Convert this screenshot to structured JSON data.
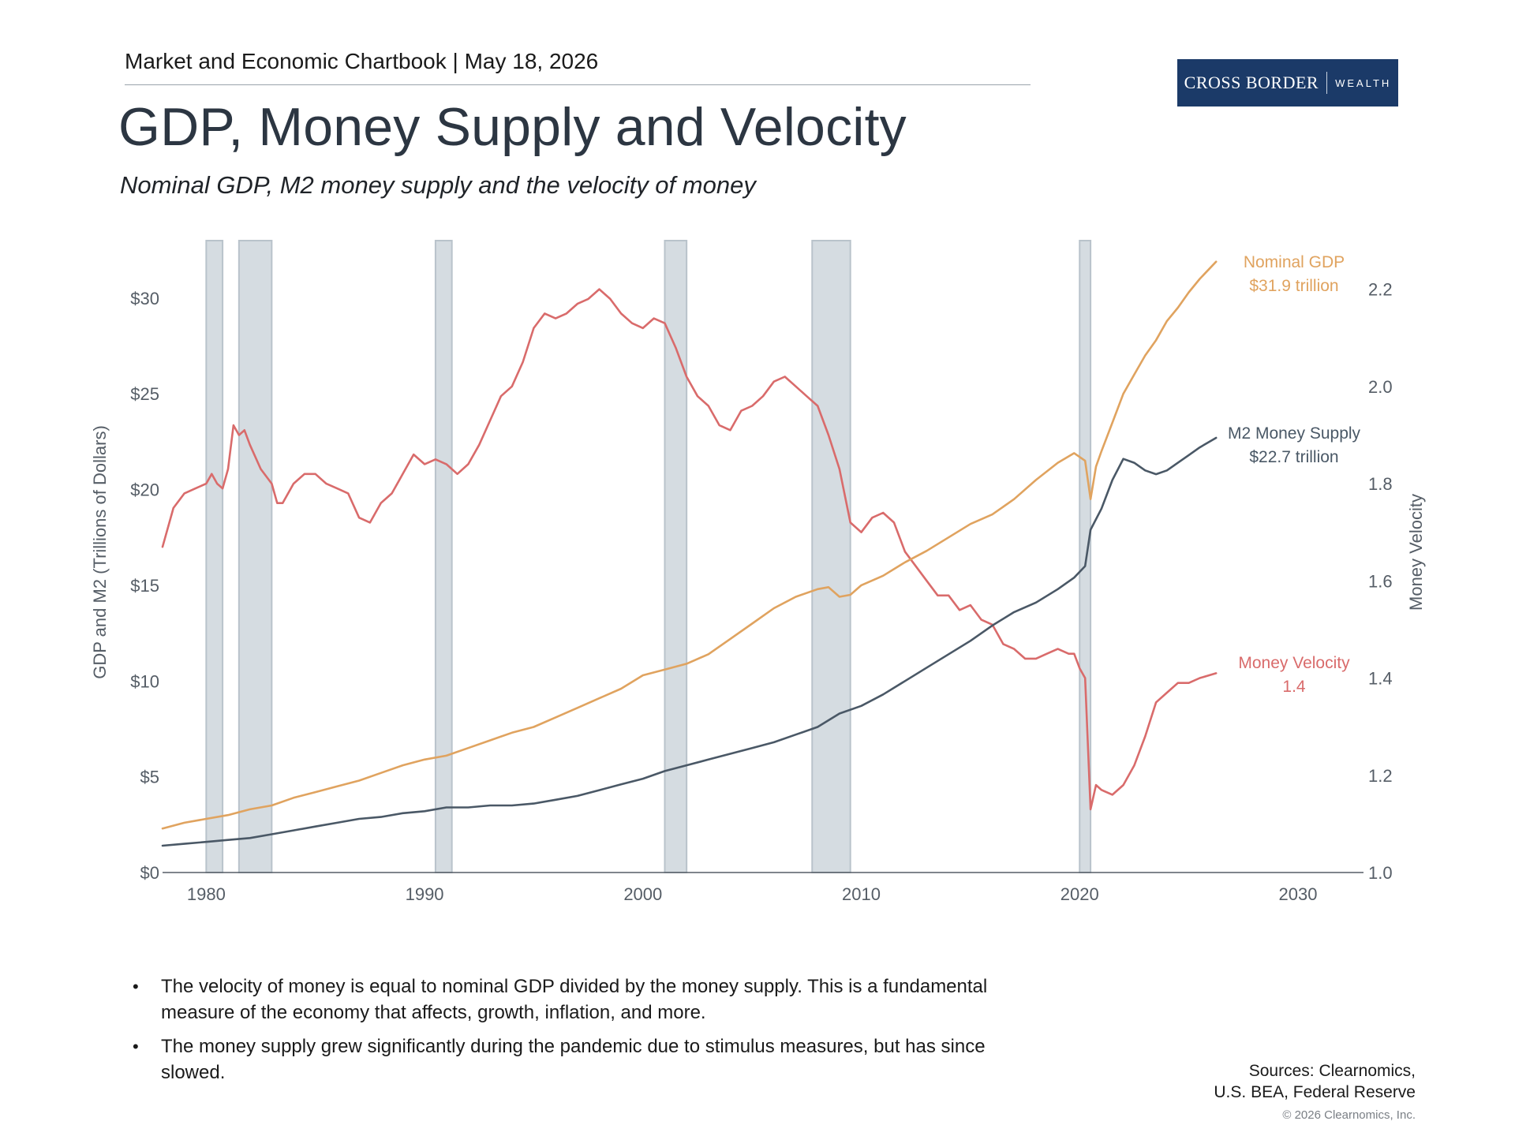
{
  "header": {
    "chartbook": "Market and Economic Chartbook | May 18, 2026",
    "logo_word1": "CROSS BORDER",
    "logo_word2": "WEALTH"
  },
  "title": "GDP, Money Supply and Velocity",
  "subtitle": "Nominal GDP, M2 money supply and the velocity of money",
  "colors": {
    "gdp": "#e0a35f",
    "m2": "#4a5866",
    "velocity": "#d96b6b",
    "recession": "#d5dce1",
    "axis_text": "#555d66"
  },
  "chart_data": {
    "type": "line",
    "ylabel_left": "GDP and M2 (Trillions of Dollars)",
    "ylabel_right": "Money Velocity",
    "xlim": [
      1978,
      2033
    ],
    "ylim_left": [
      0,
      33
    ],
    "ylim_right": [
      1.0,
      2.3
    ],
    "x_ticks": [
      "1980",
      "1990",
      "2000",
      "2010",
      "2020",
      "2030"
    ],
    "x_tick_values": [
      1980,
      1990,
      2000,
      2010,
      2020,
      2030
    ],
    "y_left_ticks": [
      "$0",
      "$5",
      "$10",
      "$15",
      "$20",
      "$25",
      "$30"
    ],
    "y_left_tick_values": [
      0,
      5,
      10,
      15,
      20,
      25,
      30
    ],
    "y_right_ticks": [
      "1.0",
      "1.2",
      "1.4",
      "1.6",
      "1.8",
      "2.0",
      "2.2"
    ],
    "y_right_tick_values": [
      1.0,
      1.2,
      1.4,
      1.6,
      1.8,
      2.0,
      2.2
    ],
    "recessions": [
      [
        1980.0,
        1980.75
      ],
      [
        1981.5,
        1983.0
      ],
      [
        1990.5,
        1991.25
      ],
      [
        2001.0,
        2002.0
      ],
      [
        2007.75,
        2009.5
      ],
      [
        2020.0,
        2020.5
      ]
    ],
    "series": [
      {
        "name": "Nominal GDP",
        "label_line1": "Nominal GDP",
        "label_line2": "$31.9 trillion",
        "axis": "left",
        "points": [
          [
            1978,
            2.3
          ],
          [
            1979,
            2.6
          ],
          [
            1980,
            2.8
          ],
          [
            1981,
            3.0
          ],
          [
            1982,
            3.3
          ],
          [
            1983,
            3.5
          ],
          [
            1984,
            3.9
          ],
          [
            1985,
            4.2
          ],
          [
            1986,
            4.5
          ],
          [
            1987,
            4.8
          ],
          [
            1988,
            5.2
          ],
          [
            1989,
            5.6
          ],
          [
            1990,
            5.9
          ],
          [
            1991,
            6.1
          ],
          [
            1992,
            6.5
          ],
          [
            1993,
            6.9
          ],
          [
            1994,
            7.3
          ],
          [
            1995,
            7.6
          ],
          [
            1996,
            8.1
          ],
          [
            1997,
            8.6
          ],
          [
            1998,
            9.1
          ],
          [
            1999,
            9.6
          ],
          [
            2000,
            10.3
          ],
          [
            2001,
            10.6
          ],
          [
            2002,
            10.9
          ],
          [
            2003,
            11.4
          ],
          [
            2004,
            12.2
          ],
          [
            2005,
            13.0
          ],
          [
            2006,
            13.8
          ],
          [
            2007,
            14.4
          ],
          [
            2008,
            14.8
          ],
          [
            2008.5,
            14.9
          ],
          [
            2009,
            14.4
          ],
          [
            2009.5,
            14.5
          ],
          [
            2010,
            15.0
          ],
          [
            2011,
            15.5
          ],
          [
            2012,
            16.2
          ],
          [
            2013,
            16.8
          ],
          [
            2014,
            17.5
          ],
          [
            2015,
            18.2
          ],
          [
            2016,
            18.7
          ],
          [
            2017,
            19.5
          ],
          [
            2018,
            20.5
          ],
          [
            2019,
            21.4
          ],
          [
            2019.75,
            21.9
          ],
          [
            2020.25,
            21.5
          ],
          [
            2020.5,
            19.5
          ],
          [
            2020.75,
            21.2
          ],
          [
            2021,
            22.0
          ],
          [
            2021.5,
            23.5
          ],
          [
            2022,
            25.0
          ],
          [
            2022.5,
            26.0
          ],
          [
            2023,
            27.0
          ],
          [
            2023.5,
            27.8
          ],
          [
            2024,
            28.8
          ],
          [
            2024.5,
            29.5
          ],
          [
            2025,
            30.3
          ],
          [
            2025.5,
            31.0
          ],
          [
            2026.25,
            31.9
          ]
        ]
      },
      {
        "name": "M2 Money Supply",
        "label_line1": "M2 Money Supply",
        "label_line2": "$22.7 trillion",
        "axis": "left",
        "points": [
          [
            1978,
            1.4
          ],
          [
            1979,
            1.5
          ],
          [
            1980,
            1.6
          ],
          [
            1981,
            1.7
          ],
          [
            1982,
            1.8
          ],
          [
            1983,
            2.0
          ],
          [
            1984,
            2.2
          ],
          [
            1985,
            2.4
          ],
          [
            1986,
            2.6
          ],
          [
            1987,
            2.8
          ],
          [
            1988,
            2.9
          ],
          [
            1989,
            3.1
          ],
          [
            1990,
            3.2
          ],
          [
            1991,
            3.4
          ],
          [
            1992,
            3.4
          ],
          [
            1993,
            3.5
          ],
          [
            1994,
            3.5
          ],
          [
            1995,
            3.6
          ],
          [
            1996,
            3.8
          ],
          [
            1997,
            4.0
          ],
          [
            1998,
            4.3
          ],
          [
            1999,
            4.6
          ],
          [
            2000,
            4.9
          ],
          [
            2001,
            5.3
          ],
          [
            2002,
            5.6
          ],
          [
            2003,
            5.9
          ],
          [
            2004,
            6.2
          ],
          [
            2005,
            6.5
          ],
          [
            2006,
            6.8
          ],
          [
            2007,
            7.2
          ],
          [
            2008,
            7.6
          ],
          [
            2009,
            8.3
          ],
          [
            2010,
            8.7
          ],
          [
            2011,
            9.3
          ],
          [
            2012,
            10.0
          ],
          [
            2013,
            10.7
          ],
          [
            2014,
            11.4
          ],
          [
            2015,
            12.1
          ],
          [
            2016,
            12.9
          ],
          [
            2017,
            13.6
          ],
          [
            2018,
            14.1
          ],
          [
            2019,
            14.8
          ],
          [
            2019.75,
            15.4
          ],
          [
            2020.25,
            16.0
          ],
          [
            2020.5,
            17.9
          ],
          [
            2021,
            19.0
          ],
          [
            2021.5,
            20.5
          ],
          [
            2022,
            21.6
          ],
          [
            2022.5,
            21.4
          ],
          [
            2023,
            21.0
          ],
          [
            2023.5,
            20.8
          ],
          [
            2024,
            21.0
          ],
          [
            2024.5,
            21.4
          ],
          [
            2025,
            21.8
          ],
          [
            2025.5,
            22.2
          ],
          [
            2026.25,
            22.7
          ]
        ]
      },
      {
        "name": "Money Velocity",
        "label_line1": "Money Velocity",
        "label_line2": "1.4",
        "axis": "right",
        "points": [
          [
            1978,
            1.67
          ],
          [
            1978.5,
            1.75
          ],
          [
            1979,
            1.78
          ],
          [
            1979.5,
            1.79
          ],
          [
            1980,
            1.8
          ],
          [
            1980.25,
            1.82
          ],
          [
            1980.5,
            1.8
          ],
          [
            1980.75,
            1.79
          ],
          [
            1981,
            1.83
          ],
          [
            1981.25,
            1.92
          ],
          [
            1981.5,
            1.9
          ],
          [
            1981.75,
            1.91
          ],
          [
            1982,
            1.88
          ],
          [
            1982.5,
            1.83
          ],
          [
            1983,
            1.8
          ],
          [
            1983.25,
            1.76
          ],
          [
            1983.5,
            1.76
          ],
          [
            1984,
            1.8
          ],
          [
            1984.5,
            1.82
          ],
          [
            1985,
            1.82
          ],
          [
            1985.5,
            1.8
          ],
          [
            1986,
            1.79
          ],
          [
            1986.5,
            1.78
          ],
          [
            1987,
            1.73
          ],
          [
            1987.5,
            1.72
          ],
          [
            1988,
            1.76
          ],
          [
            1988.5,
            1.78
          ],
          [
            1989,
            1.82
          ],
          [
            1989.5,
            1.86
          ],
          [
            1990,
            1.84
          ],
          [
            1990.5,
            1.85
          ],
          [
            1991,
            1.84
          ],
          [
            1991.5,
            1.82
          ],
          [
            1992,
            1.84
          ],
          [
            1992.5,
            1.88
          ],
          [
            1993,
            1.93
          ],
          [
            1993.5,
            1.98
          ],
          [
            1994,
            2.0
          ],
          [
            1994.5,
            2.05
          ],
          [
            1995,
            2.12
          ],
          [
            1995.5,
            2.15
          ],
          [
            1996,
            2.14
          ],
          [
            1996.5,
            2.15
          ],
          [
            1997,
            2.17
          ],
          [
            1997.5,
            2.18
          ],
          [
            1998,
            2.2
          ],
          [
            1998.5,
            2.18
          ],
          [
            1999,
            2.15
          ],
          [
            1999.5,
            2.13
          ],
          [
            2000,
            2.12
          ],
          [
            2000.5,
            2.14
          ],
          [
            2001,
            2.13
          ],
          [
            2001.5,
            2.08
          ],
          [
            2002,
            2.02
          ],
          [
            2002.5,
            1.98
          ],
          [
            2003,
            1.96
          ],
          [
            2003.5,
            1.92
          ],
          [
            2004,
            1.91
          ],
          [
            2004.5,
            1.95
          ],
          [
            2005,
            1.96
          ],
          [
            2005.5,
            1.98
          ],
          [
            2006,
            2.01
          ],
          [
            2006.5,
            2.02
          ],
          [
            2007,
            2.0
          ],
          [
            2007.5,
            1.98
          ],
          [
            2008,
            1.96
          ],
          [
            2008.5,
            1.9
          ],
          [
            2009,
            1.83
          ],
          [
            2009.5,
            1.72
          ],
          [
            2010,
            1.7
          ],
          [
            2010.5,
            1.73
          ],
          [
            2011,
            1.74
          ],
          [
            2011.5,
            1.72
          ],
          [
            2012,
            1.66
          ],
          [
            2012.5,
            1.63
          ],
          [
            2013,
            1.6
          ],
          [
            2013.5,
            1.57
          ],
          [
            2014,
            1.57
          ],
          [
            2014.5,
            1.54
          ],
          [
            2015,
            1.55
          ],
          [
            2015.5,
            1.52
          ],
          [
            2016,
            1.51
          ],
          [
            2016.5,
            1.47
          ],
          [
            2017,
            1.46
          ],
          [
            2017.5,
            1.44
          ],
          [
            2018,
            1.44
          ],
          [
            2018.5,
            1.45
          ],
          [
            2019,
            1.46
          ],
          [
            2019.5,
            1.45
          ],
          [
            2019.75,
            1.45
          ],
          [
            2020,
            1.42
          ],
          [
            2020.25,
            1.4
          ],
          [
            2020.5,
            1.13
          ],
          [
            2020.75,
            1.18
          ],
          [
            2021,
            1.17
          ],
          [
            2021.5,
            1.16
          ],
          [
            2022,
            1.18
          ],
          [
            2022.5,
            1.22
          ],
          [
            2023,
            1.28
          ],
          [
            2023.5,
            1.35
          ],
          [
            2024,
            1.37
          ],
          [
            2024.5,
            1.39
          ],
          [
            2025,
            1.39
          ],
          [
            2025.5,
            1.4
          ],
          [
            2026.25,
            1.41
          ]
        ]
      }
    ]
  },
  "bullets": [
    "The velocity of money is equal to nominal GDP divided by the money supply. This is a fundamental measure of the economy that affects, growth, inflation, and more.",
    "The money supply grew significantly during the pandemic due to stimulus measures, but has since slowed."
  ],
  "sources_line1": "Sources: Clearnomics,",
  "sources_line2": "U.S. BEA, Federal Reserve",
  "copyright": "© 2026 Clearnomics, Inc."
}
